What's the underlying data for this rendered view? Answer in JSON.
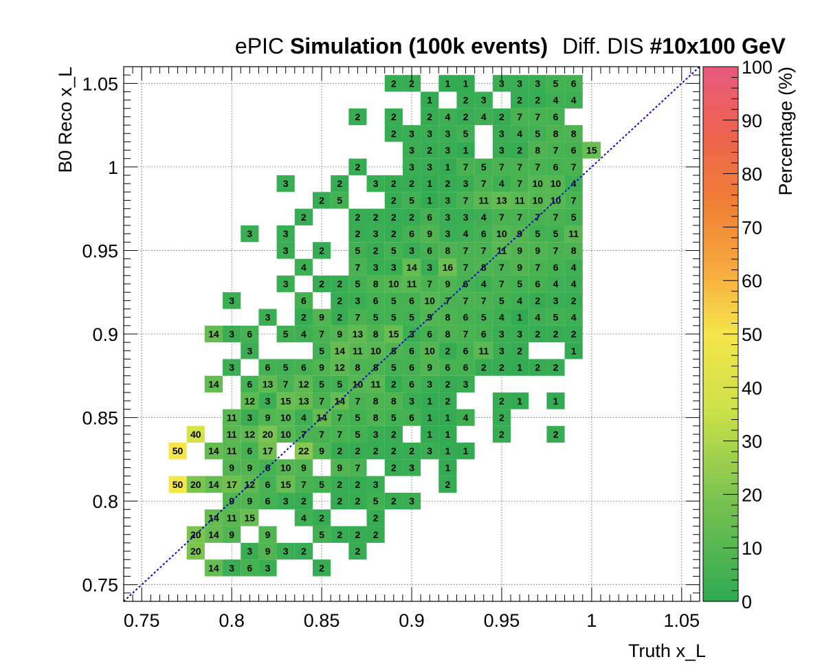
{
  "chart_data": {
    "type": "heatmap",
    "title": {
      "part1": "ePIC",
      "part2": "Simulation (100k events)",
      "part3": "Diff. DIS",
      "part4": "#10x100 GeV"
    },
    "xlabel": "Truth x_L",
    "ylabel": "B0 Reco x_L",
    "zlabel": "Percentage (%)",
    "xlim": [
      0.74,
      1.06
    ],
    "ylim": [
      0.74,
      1.06
    ],
    "zlim": [
      0,
      100
    ],
    "bin_width": 0.01,
    "x_ticks": [
      "0.75",
      "0.8",
      "0.85",
      "0.9",
      "0.95",
      "1",
      "1.05"
    ],
    "y_ticks": [
      "0.75",
      "0.8",
      "0.85",
      "0.9",
      "0.95",
      "1",
      "1.05"
    ],
    "z_ticks": [
      "0",
      "10",
      "20",
      "30",
      "40",
      "50",
      "60",
      "70",
      "80",
      "90",
      "100"
    ],
    "grid": true,
    "diagonal_reference": true,
    "colors": {
      "low": "#2eaa52",
      "mid": "#f5e64a",
      "high_orange": "#f07e36",
      "top": "#e85a7c",
      "diagonal": "#0000cc"
    },
    "rows": [
      {
        "y": 1.05,
        "xstart": 0.89,
        "values": [
          2,
          2,
          null,
          1,
          1,
          null,
          3,
          3,
          3,
          5,
          6
        ]
      },
      {
        "y": 1.04,
        "xstart": 0.91,
        "values": [
          1,
          null,
          2,
          3,
          null,
          2,
          2,
          4,
          4
        ]
      },
      {
        "y": 1.03,
        "xstart": 0.87,
        "values": [
          2,
          null,
          2,
          null,
          2,
          4,
          2,
          4,
          2,
          7,
          7,
          6
        ]
      },
      {
        "y": 1.02,
        "xstart": 0.89,
        "values": [
          2,
          3,
          3,
          3,
          5,
          null,
          3,
          4,
          5,
          8,
          8
        ]
      },
      {
        "y": 1.01,
        "xstart": 0.9,
        "values": [
          3,
          2,
          3,
          1,
          null,
          3,
          2,
          8,
          7,
          6,
          15
        ]
      },
      {
        "y": 1.0,
        "xstart": 0.87,
        "values": [
          2,
          null,
          null,
          3,
          3,
          1,
          7,
          5,
          7,
          7,
          7,
          6,
          7
        ]
      },
      {
        "y": 0.99,
        "xstart": 0.83,
        "values": [
          3,
          null,
          null,
          2,
          null,
          3,
          2,
          2,
          1,
          2,
          3,
          7,
          4,
          7,
          10,
          10,
          4
        ]
      },
      {
        "y": 0.98,
        "xstart": 0.85,
        "values": [
          2,
          5,
          null,
          null,
          2,
          5,
          1,
          3,
          7,
          11,
          13,
          11,
          10,
          10,
          7
        ]
      },
      {
        "y": 0.97,
        "xstart": 0.84,
        "values": [
          2,
          null,
          null,
          2,
          2,
          2,
          2,
          6,
          3,
          3,
          4,
          7,
          7,
          7,
          7,
          5
        ]
      },
      {
        "y": 0.96,
        "xstart": 0.81,
        "values": [
          3,
          null,
          3,
          null,
          null,
          null,
          2,
          3,
          2,
          6,
          9,
          3,
          4,
          6,
          10,
          9,
          5,
          5,
          11
        ]
      },
      {
        "y": 0.95,
        "xstart": 0.83,
        "values": [
          3,
          null,
          2,
          null,
          5,
          2,
          5,
          3,
          6,
          8,
          7,
          7,
          11,
          9,
          9,
          7,
          8
        ]
      },
      {
        "y": 0.94,
        "xstart": 0.84,
        "values": [
          4,
          null,
          null,
          7,
          3,
          3,
          14,
          3,
          16,
          7,
          8,
          7,
          9,
          7,
          6,
          4
        ]
      },
      {
        "y": 0.93,
        "xstart": 0.83,
        "values": [
          3,
          null,
          2,
          2,
          5,
          8,
          10,
          11,
          7,
          9,
          6,
          4,
          7,
          5,
          6,
          4,
          4
        ]
      },
      {
        "y": 0.92,
        "xstart": 0.8,
        "values": [
          3,
          null,
          null,
          null,
          6,
          null,
          2,
          3,
          6,
          5,
          6,
          10,
          7,
          7,
          7,
          5,
          4,
          2,
          3,
          2
        ]
      },
      {
        "y": 0.91,
        "xstart": 0.82,
        "values": [
          3,
          null,
          2,
          9,
          2,
          7,
          5,
          5,
          5,
          9,
          8,
          6,
          5,
          4,
          1,
          4,
          5,
          4
        ]
      },
      {
        "y": 0.9,
        "xstart": 0.79,
        "values": [
          14,
          3,
          6,
          null,
          5,
          4,
          7,
          9,
          13,
          8,
          15,
          3,
          6,
          8,
          7,
          6,
          3,
          3,
          2,
          2,
          2
        ]
      },
      {
        "y": 0.89,
        "xstart": 0.81,
        "values": [
          3,
          null,
          null,
          null,
          5,
          14,
          11,
          10,
          8,
          6,
          10,
          2,
          6,
          11,
          3,
          2,
          null,
          null,
          1
        ]
      },
      {
        "y": 0.88,
        "xstart": 0.8,
        "values": [
          3,
          null,
          6,
          5,
          6,
          9,
          12,
          8,
          8,
          5,
          6,
          9,
          6,
          6,
          2,
          2,
          1,
          2,
          2
        ]
      },
      {
        "y": 0.87,
        "xstart": 0.79,
        "values": [
          14,
          null,
          6,
          13,
          7,
          12,
          5,
          5,
          10,
          11,
          2,
          6,
          3,
          2,
          3
        ]
      },
      {
        "y": 0.86,
        "xstart": 0.81,
        "values": [
          12,
          3,
          15,
          13,
          7,
          14,
          7,
          8,
          8,
          3,
          1,
          2,
          null,
          null,
          2,
          1,
          null,
          1
        ]
      },
      {
        "y": 0.85,
        "xstart": 0.8,
        "values": [
          11,
          3,
          9,
          10,
          4,
          14,
          7,
          5,
          8,
          5,
          6,
          1,
          1,
          4,
          null,
          2
        ]
      },
      {
        "y": 0.84,
        "xstart": 0.78,
        "values": [
          40,
          null,
          11,
          12,
          20,
          10,
          7,
          7,
          7,
          5,
          3,
          2,
          null,
          1,
          1,
          null,
          null,
          2,
          null,
          null,
          2
        ]
      },
      {
        "y": 0.83,
        "xstart": 0.77,
        "values": [
          50,
          null,
          14,
          11,
          6,
          17,
          null,
          22,
          9,
          2,
          2,
          2,
          2,
          2,
          3,
          1,
          1
        ]
      },
      {
        "y": 0.82,
        "xstart": 0.8,
        "values": [
          9,
          9,
          6,
          10,
          9,
          null,
          9,
          7,
          null,
          2,
          3,
          null,
          1
        ]
      },
      {
        "y": 0.81,
        "xstart": 0.77,
        "values": [
          50,
          20,
          14,
          17,
          12,
          6,
          15,
          7,
          5,
          2,
          2,
          3,
          null,
          null,
          null,
          2
        ]
      },
      {
        "y": 0.8,
        "xstart": 0.8,
        "values": [
          9,
          9,
          6,
          3,
          2,
          null,
          2,
          2,
          5,
          2,
          3
        ]
      },
      {
        "y": 0.79,
        "xstart": 0.79,
        "values": [
          14,
          11,
          15,
          null,
          null,
          4,
          2,
          null,
          null,
          2
        ]
      },
      {
        "y": 0.78,
        "xstart": 0.78,
        "values": [
          20,
          14,
          9,
          null,
          9,
          null,
          null,
          5,
          2,
          2,
          2
        ]
      },
      {
        "y": 0.77,
        "xstart": 0.78,
        "values": [
          20,
          null,
          null,
          3,
          9,
          3,
          2,
          null,
          null,
          2
        ]
      },
      {
        "y": 0.76,
        "xstart": 0.79,
        "values": [
          14,
          3,
          6,
          3,
          null,
          null,
          2
        ]
      }
    ]
  }
}
